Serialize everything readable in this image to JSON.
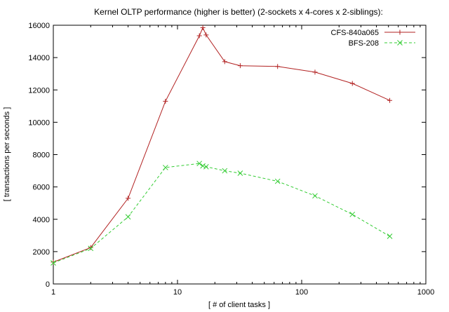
{
  "chart_data": {
    "type": "line",
    "title": "Kernel OLTP performance (higher is better) (2-sockets x 4-cores x 2-siblings):",
    "xlabel": "[ # of client tasks ]",
    "ylabel": "[ transactions per seconds ]",
    "xscale": "log",
    "xlim": [
      1,
      1000
    ],
    "ylim": [
      0,
      16000
    ],
    "x_ticks": [
      1,
      10,
      100,
      1000
    ],
    "x_tick_labels": [
      "1",
      "10",
      "100",
      "1000"
    ],
    "y_ticks": [
      0,
      2000,
      4000,
      6000,
      8000,
      10000,
      12000,
      14000,
      16000
    ],
    "y_tick_labels": [
      "0",
      "2000",
      "4000",
      "6000",
      "8000",
      "10000",
      "12000",
      "14000",
      "16000"
    ],
    "grid": false,
    "legend_position": "top-right",
    "series": [
      {
        "name": "CFS-840a065",
        "color": "#b22222",
        "line_style": "solid",
        "marker": "plus",
        "x": [
          1,
          2,
          4,
          8,
          15,
          16,
          17,
          24,
          32,
          64,
          128,
          256,
          512
        ],
        "y": [
          1350,
          2250,
          5300,
          11300,
          15350,
          15850,
          15400,
          13750,
          13500,
          13450,
          13100,
          12400,
          11350
        ]
      },
      {
        "name": "BFS-208",
        "color": "#33cc33",
        "line_style": "dashed",
        "marker": "x",
        "x": [
          1,
          2,
          4,
          8,
          15,
          16,
          17,
          24,
          32,
          64,
          128,
          256,
          512
        ],
        "y": [
          1300,
          2200,
          4150,
          7200,
          7450,
          7300,
          7250,
          7000,
          6850,
          6350,
          5450,
          4300,
          2950
        ]
      }
    ]
  }
}
